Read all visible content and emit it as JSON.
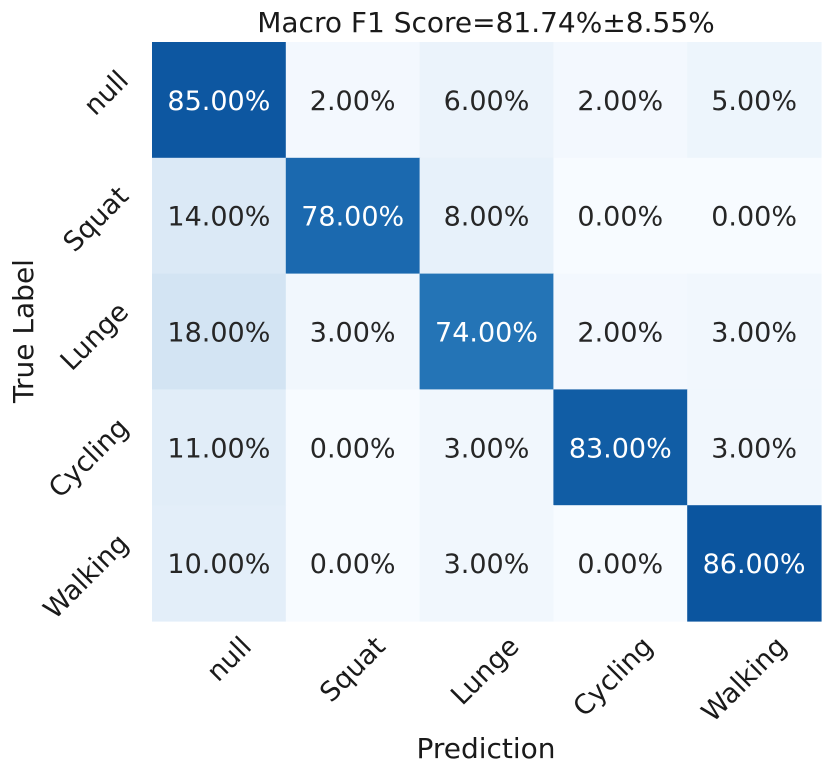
{
  "chart_data": {
    "type": "heatmap",
    "title": "Macro F1 Score=81.74%±8.55%",
    "xlabel": "Prediction",
    "ylabel": "True Label",
    "x_categories": [
      "null",
      "Squat",
      "Lunge",
      "Cycling",
      "Walking"
    ],
    "y_categories": [
      "null",
      "Squat",
      "Lunge",
      "Cycling",
      "Walking"
    ],
    "value_range": [
      0,
      100
    ],
    "colormap": "Blues",
    "matrix": [
      [
        85,
        2,
        6,
        2,
        5
      ],
      [
        14,
        78,
        8,
        0,
        0
      ],
      [
        18,
        3,
        74,
        2,
        3
      ],
      [
        11,
        0,
        3,
        83,
        3
      ],
      [
        10,
        0,
        3,
        0,
        86
      ]
    ],
    "cell_labels": [
      [
        "85.00%",
        "2.00%",
        "6.00%",
        "2.00%",
        "5.00%"
      ],
      [
        "14.00%",
        "78.00%",
        "8.00%",
        "0.00%",
        "0.00%"
      ],
      [
        "18.00%",
        "3.00%",
        "74.00%",
        "2.00%",
        "3.00%"
      ],
      [
        "11.00%",
        "0.00%",
        "3.00%",
        "83.00%",
        "3.00%"
      ],
      [
        "10.00%",
        "0.00%",
        "3.00%",
        "0.00%",
        "86.00%"
      ]
    ]
  }
}
